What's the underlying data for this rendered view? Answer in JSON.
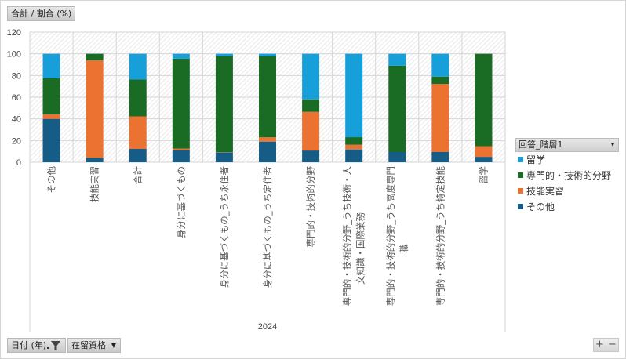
{
  "header": {
    "value_field": "合計 / 割合 (%)"
  },
  "footer": {
    "date_field": "日付 (年)",
    "category_field": "在留資格",
    "zoom_in": "+",
    "zoom_out": "−"
  },
  "legend": {
    "title": "回答_階層1",
    "dropdown_icon": "▾"
  },
  "colors": {
    "留学": "#179fd9",
    "専門的・技術的分野": "#1a6b24",
    "技能実習": "#ec7232",
    "その他": "#155d86"
  },
  "chart_data": {
    "type": "bar",
    "stacked": true,
    "title": "",
    "ylabel": "",
    "xlabel": "2024",
    "ylim": [
      0,
      120
    ],
    "yticks": [
      0,
      20,
      40,
      60,
      80,
      100,
      120
    ],
    "grid": true,
    "legend_position": "right",
    "group_label": "2024",
    "categories": [
      "その他",
      "技能実習",
      "合計",
      "身分に基づくもの",
      "身分に基づくもの_うち永住者",
      "身分に基づくもの_うち定住者",
      "専門的・技術的分野",
      "専門的・技術的分野_うち技術・人文知識・国際業務",
      "専門的・技術的分野_うち高度専門職",
      "専門的・技術的分野_うち特定技能",
      "留学"
    ],
    "category_lines": [
      [
        "その他"
      ],
      [
        "技能実習"
      ],
      [
        "合計"
      ],
      [
        "身分に基づくもの"
      ],
      [
        "身分に基づくもの_うち永住者"
      ],
      [
        "身分に基づくもの_うち定住者"
      ],
      [
        "専門的・技術的分野"
      ],
      [
        "専門的・技術的分野_うち技術・人",
        "文知識・国際業務"
      ],
      [
        "専門的・技術的分野_うち高度専門",
        "職"
      ],
      [
        "専門的・技術的分野_うち特定技能"
      ],
      [
        "留学"
      ]
    ],
    "series": [
      {
        "name": "その他",
        "values": [
          40,
          4,
          12.3,
          11,
          9,
          19,
          10.8,
          11.8,
          9.4,
          9.4,
          5
        ]
      },
      {
        "name": "技能実習",
        "values": [
          4,
          90,
          30,
          1.5,
          0.3,
          4,
          35.7,
          4.3,
          0,
          62.8,
          9.7
        ]
      },
      {
        "name": "専門的・技術的分野",
        "values": [
          33.5,
          6,
          34,
          83,
          88.3,
          74.6,
          11.5,
          7,
          79.6,
          6.8,
          85.3
        ]
      },
      {
        "name": "留学",
        "values": [
          22.5,
          0,
          23.7,
          4.5,
          2.4,
          2.4,
          42,
          76.9,
          11,
          21,
          0
        ]
      }
    ],
    "legend_order": [
      "留学",
      "専門的・技術的分野",
      "技能実習",
      "その他"
    ]
  }
}
